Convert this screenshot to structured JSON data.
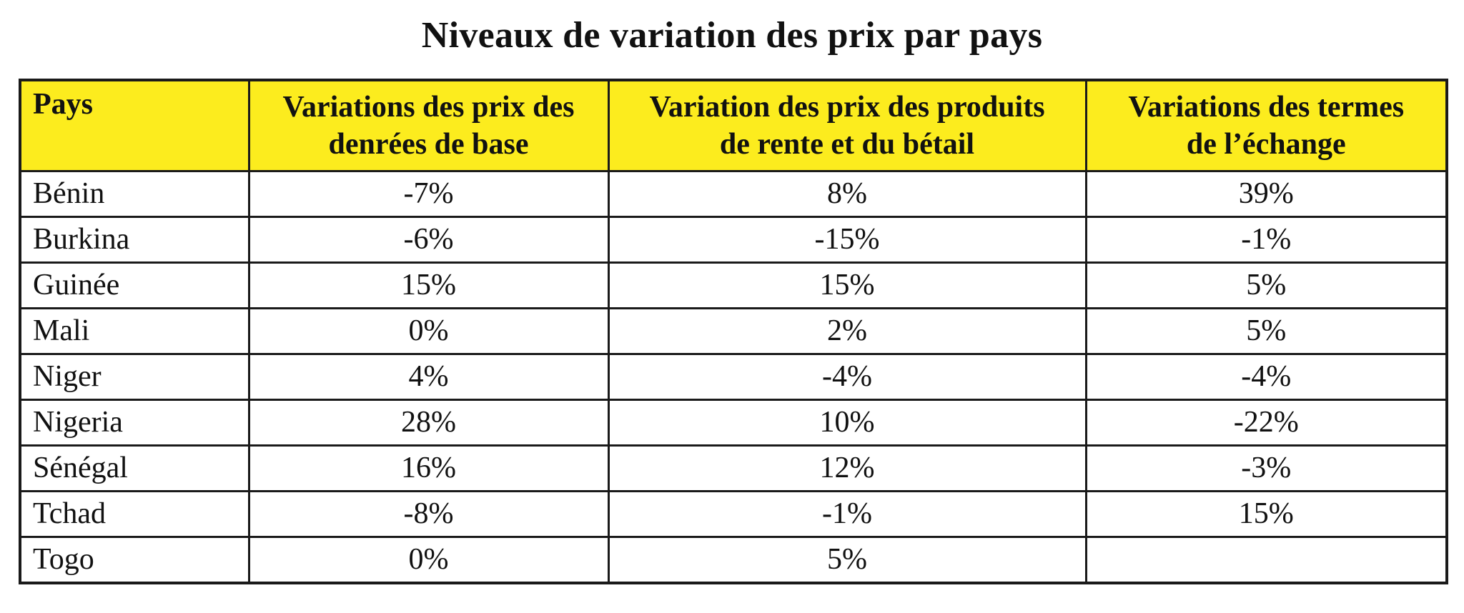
{
  "chart_data": {
    "type": "table",
    "title": "Niveaux de variation des prix par pays",
    "columns": [
      "Pays",
      "Variations des prix des denrées de base",
      "Variation des prix des produits de rente et du bétail",
      "Variations des termes de l’échange"
    ],
    "column_lines": [
      [
        "Pays"
      ],
      [
        "Variations des prix des",
        "denrées de base"
      ],
      [
        "Variation des prix des produits",
        "de rente et du bétail"
      ],
      [
        "Variations des termes",
        "de l’échange"
      ]
    ],
    "rows": [
      {
        "pays": "Bénin",
        "denrees": "-7%",
        "rente": "8%",
        "termes": "39%"
      },
      {
        "pays": "Burkina",
        "denrees": "-6%",
        "rente": "-15%",
        "termes": "-1%"
      },
      {
        "pays": "Guinée",
        "denrees": "15%",
        "rente": "15%",
        "termes": "5%"
      },
      {
        "pays": "Mali",
        "denrees": "0%",
        "rente": "2%",
        "termes": "5%"
      },
      {
        "pays": "Niger",
        "denrees": "4%",
        "rente": "-4%",
        "termes": "-4%"
      },
      {
        "pays": "Nigeria",
        "denrees": "28%",
        "rente": "10%",
        "termes": "-22%"
      },
      {
        "pays": "Sénégal",
        "denrees": "16%",
        "rente": "12%",
        "termes": "-3%"
      },
      {
        "pays": "Tchad",
        "denrees": "-8%",
        "rente": "-1%",
        "termes": "15%"
      },
      {
        "pays": "Togo",
        "denrees": "0%",
        "rente": "5%",
        "termes": ""
      }
    ],
    "colors": {
      "header_background": "#fcec1e",
      "border": "#1a1a1a",
      "text": "#111111"
    }
  }
}
